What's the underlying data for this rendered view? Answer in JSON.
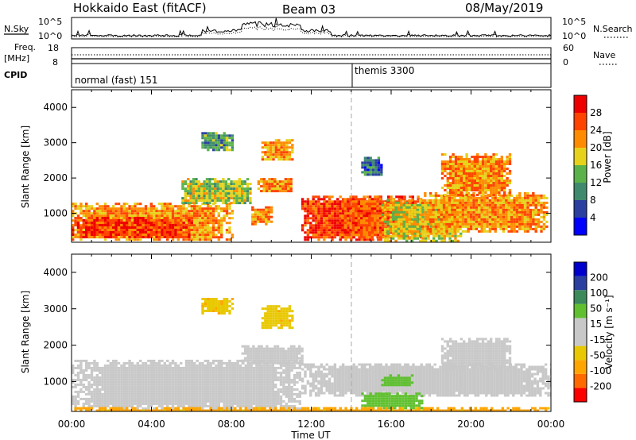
{
  "header": {
    "title_left": "Hokkaido East (fitACF)",
    "title_mid": "Beam 03",
    "title_right": "08/May/2019"
  },
  "labels": {
    "nsky": "N.Sky",
    "nsearch": "N.Search",
    "freq": "Freq.",
    "freq_unit": "[MHz]",
    "nave": "Nave",
    "cpid": "CPID",
    "ylabel": "Slant Range [km]",
    "xlabel": "Time UT"
  },
  "noise_axis": {
    "left": [
      "10^5",
      "10^0"
    ],
    "right": [
      "10^5",
      "10^0"
    ]
  },
  "freq_axis": {
    "left": [
      "18",
      "8"
    ],
    "right": [
      "60",
      "0"
    ]
  },
  "cpid_segments": [
    {
      "label": "normal (fast) 151",
      "start_hour": 0
    },
    {
      "label": "themis 3300",
      "start_hour": 14
    }
  ],
  "colors": {
    "power": [
      "#0000ff",
      "#2a3fa0",
      "#3f8a6e",
      "#5cb24a",
      "#e6d21a",
      "#ff8c00",
      "#ff4400",
      "#ee0000"
    ],
    "velocity": [
      "#ff0000",
      "#ff6a00",
      "#ffa500",
      "#e8c800",
      "#c8c8c8",
      "#c8c8c8",
      "#60c030",
      "#3a8a5a",
      "#2a3fa0",
      "#0000cc"
    ]
  },
  "chart_data": [
    {
      "type": "heatmap",
      "name": "power",
      "title": "",
      "xlabel": "Time UT",
      "ylabel": "Slant Range [km]",
      "x_range_hours": [
        0,
        24
      ],
      "ylim": [
        180,
        4500
      ],
      "x_ticks": [
        "00:00",
        "04:00",
        "08:00",
        "12:00",
        "16:00",
        "20:00",
        "00:00"
      ],
      "y_ticks": [
        1000,
        2000,
        3000,
        4000
      ],
      "colorbar": {
        "label": "Power [dB]",
        "ticks": [
          "28",
          "24",
          "20",
          "16",
          "12",
          "8",
          "4"
        ],
        "range": [
          0,
          30
        ]
      },
      "regions": [
        {
          "t0": 0.0,
          "t1": 8.0,
          "r0": 250,
          "r1": 1300,
          "value": 22
        },
        {
          "t0": 0.0,
          "t1": 6.0,
          "r0": 300,
          "r1": 900,
          "value": 27
        },
        {
          "t0": 5.5,
          "t1": 9.0,
          "r0": 1300,
          "r1": 2000,
          "value": 16
        },
        {
          "t0": 6.5,
          "t1": 8.0,
          "r0": 2800,
          "r1": 3300,
          "value": 12
        },
        {
          "t0": 9.5,
          "t1": 11.0,
          "r0": 2500,
          "r1": 3100,
          "value": 22
        },
        {
          "t0": 9.3,
          "t1": 11.0,
          "r0": 1600,
          "r1": 2000,
          "value": 22
        },
        {
          "t0": 9.0,
          "t1": 10.0,
          "r0": 700,
          "r1": 1200,
          "value": 22
        },
        {
          "t0": 11.5,
          "t1": 15.5,
          "r0": 250,
          "r1": 1500,
          "value": 27
        },
        {
          "t0": 13.5,
          "t1": 17.5,
          "r0": 300,
          "r1": 1500,
          "value": 25
        },
        {
          "t0": 15.5,
          "t1": 19.5,
          "r0": 250,
          "r1": 1400,
          "value": 18
        },
        {
          "t0": 17.5,
          "t1": 23.8,
          "r0": 500,
          "r1": 1600,
          "value": 22
        },
        {
          "t0": 18.5,
          "t1": 22.0,
          "r0": 1500,
          "r1": 2700,
          "value": 22
        },
        {
          "t0": 14.5,
          "t1": 15.5,
          "r0": 2100,
          "r1": 2600,
          "value": 8
        }
      ]
    },
    {
      "type": "heatmap",
      "name": "velocity",
      "title": "",
      "xlabel": "Time UT",
      "ylabel": "Slant Range [km]",
      "x_range_hours": [
        0,
        24
      ],
      "ylim": [
        180,
        4500
      ],
      "x_ticks": [
        "00:00",
        "04:00",
        "08:00",
        "12:00",
        "16:00",
        "20:00",
        "00:00"
      ],
      "y_ticks": [
        1000,
        2000,
        3000,
        4000
      ],
      "colorbar": {
        "label": "Velocity [m s⁻¹]",
        "ticks": [
          "200",
          "100",
          "50",
          "15",
          "-15",
          "-50",
          "-100",
          "-200"
        ],
        "range": [
          -250,
          250
        ]
      },
      "regions": [
        {
          "t0": 0.0,
          "t1": 11.5,
          "r0": 250,
          "r1": 1600,
          "value": 0
        },
        {
          "t0": 8.5,
          "t1": 11.5,
          "r0": 1500,
          "r1": 2000,
          "value": 0
        },
        {
          "t0": 9.5,
          "t1": 11.0,
          "r0": 2500,
          "r1": 3100,
          "value": -40
        },
        {
          "t0": 6.5,
          "t1": 8.0,
          "r0": 2900,
          "r1": 3300,
          "value": -40
        },
        {
          "t0": 11.5,
          "t1": 24.0,
          "r0": 600,
          "r1": 1500,
          "value": 0
        },
        {
          "t0": 14.5,
          "t1": 17.5,
          "r0": 300,
          "r1": 700,
          "value": 30
        },
        {
          "t0": 15.5,
          "t1": 17.0,
          "r0": 900,
          "r1": 1200,
          "value": 30
        },
        {
          "t0": 18.5,
          "t1": 22.0,
          "r0": 1300,
          "r1": 2200,
          "value": 0
        },
        {
          "t0": 0.0,
          "t1": 24.0,
          "r0": 200,
          "r1": 300,
          "value": -60
        }
      ]
    }
  ]
}
